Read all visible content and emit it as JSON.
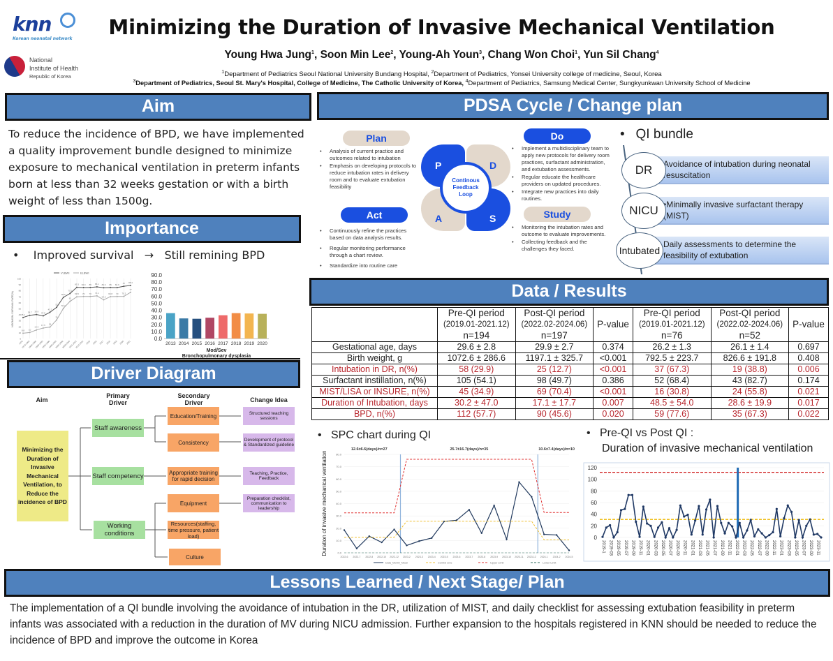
{
  "logos": {
    "knn_text": "knn",
    "knn_sub": "Korean neonatal network",
    "nih_line1": "National",
    "nih_line2": "Institute of Health",
    "nih_line3": "Republic of Korea"
  },
  "header": {
    "title": "Minimizing the Duration of Invasive Mechanical Ventilation",
    "authors": [
      {
        "name": "Young Hwa Jung",
        "sup": "1"
      },
      {
        "name": "Soon Min Lee",
        "sup": "2"
      },
      {
        "name": "Young-Ah Youn",
        "sup": "3"
      },
      {
        "name": "Chang Won Choi",
        "sup": "1"
      },
      {
        "name": "Yun Sil Chang",
        "sup": "4"
      }
    ],
    "affil_line1_a": "Department of Pediatrics Seoul National University Bundang Hospital, ",
    "affil_line1_b": "Department of Pediatrics, Yonsei University college of medicine, Seoul, Korea",
    "affil_line2_a": "Department of Pediatrics, Seoul St. Mary's Hospital, College of Medicine, The Catholic University of Korea, ",
    "affil_line2_b": "Department of Pediatrics, Samsung Medical Center, Sungkyunkwan University School of Medicine"
  },
  "sections": {
    "aim": "Aim",
    "importance": "Importance",
    "driver": "Driver Diagram",
    "pdsa": "PDSA Cycle / Change plan",
    "results": "Data / Results",
    "lessons": "Lessons Learned / Next Stage/ Plan"
  },
  "aim_text": "To reduce the incidence of BPD, we have implemented a quality improvement bundle designed to minimize exposure to mechanical ventilation in preterm infants born at less than 32 weeks gestation or with a birth weight of less than 1500g.",
  "importance": {
    "left": "Improved survival",
    "arrow": "→",
    "right": "Still remining BPD"
  },
  "driver_diagram": {
    "headers": {
      "aim": "Aim",
      "primary": "Primary Driver",
      "secondary": "Secondary Driver",
      "change": "Change Idea"
    },
    "aim_box": "Minimizing the Duration of Invasive Mechanical Ventilation, to Reduce the incidence of BPD",
    "primary": [
      "Staff awareness",
      "Staff competency",
      "Working conditions"
    ],
    "secondary": [
      "Education/Training",
      "Consistency",
      "Appropriate training for rapid decision",
      "Equipment",
      "Resources(staffing, time pressure, patient load)",
      "Culture"
    ],
    "change": [
      "Structured teaching sessions",
      "Development of protocol & Standardized guideline",
      "Teaching, Practice, Feedback",
      "Preparation checklist, communication to leadership"
    ]
  },
  "pdsa": {
    "plan_label": "Plan",
    "do_label": "Do",
    "act_label": "Act",
    "study_label": "Study",
    "center": "Continous Feedback Loop",
    "letters": {
      "p": "P",
      "d": "D",
      "a": "A",
      "s": "S"
    },
    "plan_items": [
      "Analysis of current practice and outcomes related to intubation",
      "Emphasis on developing protocols to reduce intubation rates in delivery room and to evaluate extubation feasibility"
    ],
    "do_items": [
      "Implement a multidisciplinary team to apply new protocols for delivery room practices, surfactant administration, and extubation assessments.",
      "Regular educate the healthcare providers on updated procedures.",
      "Integrate new practices into daily routines."
    ],
    "act_items": [
      "Continuously refine the practices based on data analysis results.",
      "Regular monitoring performance through a chart review.",
      "Standardize into routine care"
    ],
    "study_items": [
      "Monitoring the intubation rates and outcome to evaluate improvements.",
      "Collecting feedback and the challenges they faced."
    ]
  },
  "qi_bundle": {
    "title": "QI bundle",
    "items": [
      {
        "tag": "DR",
        "text": "Avoidance of intubation during neonatal resuscitation"
      },
      {
        "tag": "NICU",
        "text": "•Minimally invasive surfactant therapy (MIST)"
      },
      {
        "tag": "Intubated",
        "text": "Daily assessments to determine the feasibility of extubation"
      }
    ]
  },
  "results_table": {
    "headers": [
      {
        "l1": "",
        "l2": "",
        "l3": ""
      },
      {
        "l1": "Pre-QI period",
        "l2": "(2019.01-2021.12)",
        "l3": "n=194"
      },
      {
        "l1": "Post-QI period",
        "l2": "(2022.02-2024.06)",
        "l3": "n=197"
      },
      {
        "l1": "",
        "l2": "P-value",
        "l3": ""
      },
      {
        "l1": "Pre-QI period",
        "l2": "(2019.01-2021.12)",
        "l3": "n=76"
      },
      {
        "l1": "Post-QI period",
        "l2": "(2022.02-2024.06)",
        "l3": "n=52"
      },
      {
        "l1": "",
        "l2": "P-value",
        "l3": ""
      }
    ],
    "rows": [
      {
        "highlight": false,
        "cells": [
          "Gestational age, days",
          "29.6 ± 2.8",
          "29.9 ± 2.7",
          "0.374",
          "26.2 ± 1.3",
          "26.1 ± 1.4",
          "0.697"
        ]
      },
      {
        "highlight": false,
        "cells": [
          "Birth weight, g",
          "1072.6 ± 286.6",
          "1197.1 ± 325.7",
          "<0.001",
          "792.5 ± 223.7",
          "826.6 ± 191.8",
          "0.408"
        ]
      },
      {
        "highlight": true,
        "cells": [
          "Intubation in DR, n(%)",
          "58 (29.9)",
          "25 (12.7)",
          "<0.001",
          "37 (67.3)",
          "19 (38.8)",
          "0.006"
        ]
      },
      {
        "highlight": false,
        "cells": [
          "Surfactant instillation, n(%)",
          "105 (54.1)",
          "98 (49.7)",
          "0.386",
          "52 (68.4)",
          "43 (82.7)",
          "0.174"
        ]
      },
      {
        "highlight": true,
        "cells": [
          "MIST/LISA or INSURE, n(%)",
          "45 (34.9)",
          "69 (70.4)",
          "<0.001",
          "16 (30.8)",
          "24 (55.8)",
          "0.021"
        ]
      },
      {
        "highlight": true,
        "cells": [
          "Duration of Intubation, days",
          "30.2 ± 47.0",
          "17.1 ± 17.7",
          "0.007",
          "48.5 ± 54.0",
          "28.6 ± 19.9",
          "0.017"
        ]
      },
      {
        "highlight": true,
        "cells": [
          "BPD, n(%)",
          "112 (57.7)",
          "90 (45.6)",
          "0.020",
          "59 (77.6)",
          "35 (67.3)",
          "0.022"
        ]
      }
    ]
  },
  "spc_heading": "SPC chart during QI",
  "prepost_heading1": "Pre-QI vs Post QI :",
  "prepost_heading2": "Duration of invasive mechanical ventilation",
  "lessons_text": "The implementation of a QI bundle involving the avoidance of intubation in the DR, utilization of MIST, and daily checklist for assessing extubation feasibility in preterm infants was associated with a reduction in the duration of MV during NICU admission. Further expansion to the hospitals registered in KNN should be needed to reduce the incidence of BPD and improve the outcome in Korea",
  "colors": {
    "header_blue": "#4f81bd",
    "pdsa_blue": "#1a4fe0",
    "red_text": "#b8262d"
  },
  "chart_data": [
    {
      "type": "line",
      "title": "",
      "ylabel": "NEONATAL SURVIVAL RATE(%)",
      "xlabel": "",
      "ylim": [
        0,
        100
      ],
      "yticks": [
        0,
        10,
        20,
        30,
        40,
        50,
        60,
        70,
        80,
        90,
        100
      ],
      "categories": [
        "1978",
        "1979-1983",
        "1984-1988",
        "1989-1993",
        "1994-1998",
        "1999-2003",
        "2004-2008",
        "2009-2010",
        "2011-2012",
        "2013-2014",
        "2015",
        "2016",
        "2017",
        "2018",
        "2019",
        "2020",
        "2021"
      ],
      "series": [
        {
          "name": "VLBWI",
          "values": [
            35.1,
            38.7,
            39.9,
            37.8,
            43.7,
            52,
            68.6,
            75.1,
            85.3,
            84.9,
            85.0,
            86.1,
            84.6,
            85.0,
            84.9,
            87,
            88.4
          ]
        },
        {
          "name": "ELBWI",
          "values": [
            8.8,
            10,
            14.3,
            17.5,
            19,
            31,
            50.2,
            62,
            69.5,
            70.0,
            70.0,
            71.1,
            64.5,
            69.8,
            70.0,
            70.2,
            77
          ]
        }
      ],
      "legend": "top"
    },
    {
      "type": "bar",
      "title": "",
      "xlabel": "Mod/Sev Bronchopulmonary dysplasia",
      "ylabel": "",
      "ylim": [
        0,
        90
      ],
      "yticks": [
        "0.0",
        "10.0",
        "20.0",
        "30.0",
        "40.0",
        "50.0",
        "60.0",
        "70.0",
        "80.0",
        "90.0"
      ],
      "categories": [
        "2013",
        "2014",
        "2015",
        "2016",
        "2017",
        "2018",
        "2019",
        "2020"
      ],
      "values": [
        36,
        28.5,
        28,
        29.5,
        33,
        36,
        35.5,
        35
      ],
      "colors": [
        "#4aa3c6",
        "#3a7aa6",
        "#254f7e",
        "#b04764",
        "#ee6a6a",
        "#f28d46",
        "#f3b550",
        "#b8b15a"
      ]
    },
    {
      "type": "line",
      "title": "SPC chart during QI",
      "ylabel": "Duration of invasive mechanical ventilation",
      "xlabel": "",
      "ylim": [
        0,
        80
      ],
      "yticks": [
        "0.0",
        "10.0",
        "20.0",
        "30.0",
        "40.0",
        "50.0",
        "60.0",
        "70.0",
        "80.0"
      ],
      "period_labels": [
        "12.6±6.6(days)/n=27",
        "25.7±16.7(days)/n=35",
        "10.6±7.4(days)/n=10"
      ],
      "categories": [
        "2022-6",
        "2022-7",
        "2022-8",
        "2022-10",
        "2022-12",
        "2023-2",
        "2023-3",
        "2023-4",
        "2023-5",
        "2023-6",
        "2023-7",
        "2023-8",
        "2023-9",
        "2023-10",
        "2023-11",
        "2023-12",
        "2024-1",
        "2024-2",
        "2024-5"
      ],
      "series": [
        {
          "name": "Data_Month_Mean",
          "values": [
            18.5,
            3.5,
            13.5,
            8.5,
            19,
            6,
            9.5,
            12,
            25.5,
            26.5,
            35,
            16,
            38.5,
            11,
            57.5,
            45.5,
            15,
            14.5,
            2
          ]
        },
        {
          "name": "Control Line",
          "values": [
            12.6,
            12.6,
            12.6,
            12.6,
            12.6,
            25.7,
            25.7,
            25.7,
            25.7,
            25.7,
            25.7,
            25.7,
            25.7,
            25.7,
            25.7,
            25.7,
            10.6,
            10.6,
            10.6
          ]
        },
        {
          "name": "Upper Limit",
          "values": [
            32.5,
            32.5,
            32.5,
            32.5,
            32.5,
            76,
            76,
            76,
            76,
            76,
            76,
            76,
            76,
            76,
            76,
            76,
            32.8,
            32.8,
            32.8
          ]
        },
        {
          "name": "Lower Limit",
          "values": [
            0,
            0,
            0,
            0,
            0,
            0,
            0,
            0,
            0,
            0,
            0,
            0,
            0,
            0,
            0,
            0,
            0,
            0,
            0
          ]
        }
      ],
      "phase_breaks_after_index": [
        4,
        15
      ],
      "legend": "bottom"
    },
    {
      "type": "line",
      "title": "Duration of invasive mechanical ventilation",
      "ylabel": "",
      "xlabel": "",
      "ylim": [
        0,
        120
      ],
      "yticks": [
        0,
        20,
        40,
        60,
        80,
        100,
        120
      ],
      "xtick_labels": [
        "2019-1",
        "2019-03",
        "2019-05",
        "2019-07",
        "2019-09",
        "2019-11",
        "2020-01",
        "2020-03",
        "2020-05",
        "2020-07",
        "2020-09",
        "2020-11",
        "2021-01",
        "2021-03",
        "2021-05",
        "2021-07",
        "2021-09",
        "2021-11",
        "2022-01",
        "2022-03",
        "2022-05",
        "2022-07",
        "2022-09",
        "2022-11",
        "2023-01",
        "2023-03",
        "2023-05",
        "2023-07",
        "2023-09",
        "2023-11"
      ],
      "values": [
        1,
        17,
        21,
        0,
        9,
        47,
        49,
        73,
        73,
        27,
        1,
        53,
        24,
        20,
        1,
        17,
        26,
        0,
        16,
        0,
        13,
        55,
        36,
        39,
        5,
        29,
        54,
        5,
        48,
        65,
        0,
        54,
        25,
        7,
        25,
        19,
        0,
        25,
        0,
        12,
        30,
        2,
        14,
        7,
        0,
        4,
        9,
        49,
        2,
        33,
        55,
        44,
        0,
        30,
        0,
        20,
        31,
        5,
        6,
        0
      ],
      "upper_limit": 112,
      "center_line": 31,
      "qi_start_index": 37
    }
  ]
}
